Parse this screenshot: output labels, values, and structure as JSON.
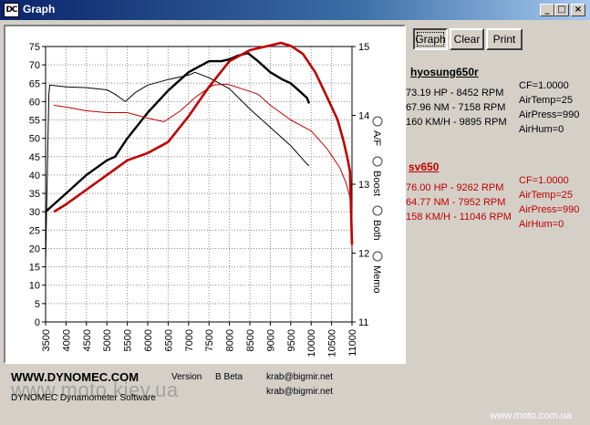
{
  "window": {
    "title": "Graph",
    "icon_text": "DC",
    "minimize": "_",
    "maximize": "□",
    "close": "×"
  },
  "buttons": {
    "graph": "Graph",
    "clear": "Clear",
    "print": "Print"
  },
  "radio_options": [
    "A/F",
    "Boost",
    "Both",
    "Memo"
  ],
  "runs": [
    {
      "name": "hyosung650r",
      "color": "#000000",
      "hp": "73.19 HP - 8452 RPM",
      "nm": "67.96 NM - 7158 RPM",
      "speed": "160 KM/H - 9895 RPM",
      "cf": "CF=1.0000",
      "temp": "AirTemp=25",
      "press": "AirPress=990",
      "hum": "AirHum=0"
    },
    {
      "name": "sv650",
      "color": "#c00000",
      "hp": "76.00 HP - 9262 RPM",
      "nm": "64.77 NM - 7952 RPM",
      "speed": "158 KM/H - 11046 RPM",
      "cf": "CF=1.0000",
      "temp": "AirTemp=25",
      "press": "AirPress=990",
      "hum": "AirHum=0"
    }
  ],
  "footer": {
    "logo": "WWW.DYNOMEC.COM",
    "subtitle": "DYNOMEC Dynamometer Software",
    "version_label": "Version",
    "version_value": "B Beta",
    "email1": "krab@bigmir.net",
    "email2": "krab@bigmir.net",
    "watermark_left": "www.moto.kiev.ua",
    "watermark_right": "www.moto.com.ua"
  },
  "chart_data": {
    "type": "line",
    "xlim": [
      3500,
      11000
    ],
    "ylim_left": [
      0,
      75
    ],
    "ylim_right": [
      11,
      15
    ],
    "x_ticks": [
      3500,
      4000,
      4500,
      5000,
      5500,
      6000,
      6500,
      7000,
      7500,
      8000,
      8500,
      9000,
      9500,
      10000,
      10500,
      11000
    ],
    "y_ticks_left": [
      0,
      5,
      10,
      15,
      20,
      25,
      30,
      35,
      40,
      45,
      50,
      55,
      60,
      65,
      70,
      75
    ],
    "y_ticks_right": [
      11,
      12,
      13,
      14,
      15
    ],
    "grid": true,
    "series": [
      {
        "name": "hyosung650r",
        "kind": "power",
        "color": "#000000",
        "points": [
          [
            3500,
            30
          ],
          [
            3700,
            32
          ],
          [
            4000,
            35
          ],
          [
            4500,
            40
          ],
          [
            5000,
            44
          ],
          [
            5200,
            45
          ],
          [
            5500,
            50
          ],
          [
            6000,
            57
          ],
          [
            6500,
            63
          ],
          [
            7000,
            68
          ],
          [
            7500,
            71
          ],
          [
            7800,
            71
          ],
          [
            8000,
            71.5
          ],
          [
            8200,
            72.5
          ],
          [
            8452,
            73.2
          ],
          [
            8700,
            71
          ],
          [
            9000,
            68
          ],
          [
            9300,
            66
          ],
          [
            9500,
            65
          ],
          [
            9700,
            63
          ],
          [
            9900,
            61
          ],
          [
            9950,
            59.5
          ]
        ]
      },
      {
        "name": "hyosung650r",
        "kind": "torque",
        "color": "#000000",
        "points": [
          [
            3500,
            16
          ],
          [
            3550,
            45
          ],
          [
            3580,
            62
          ],
          [
            3600,
            64.5
          ],
          [
            4000,
            64
          ],
          [
            4500,
            63.8
          ],
          [
            5000,
            63.2
          ],
          [
            5200,
            62
          ],
          [
            5450,
            60
          ],
          [
            5700,
            62.5
          ],
          [
            6000,
            64.5
          ],
          [
            6500,
            66
          ],
          [
            7000,
            67.2
          ],
          [
            7158,
            67.96
          ],
          [
            7500,
            66.5
          ],
          [
            8000,
            63.5
          ],
          [
            8500,
            58
          ],
          [
            9000,
            53
          ],
          [
            9500,
            48
          ],
          [
            9900,
            43
          ],
          [
            9950,
            42.5
          ]
        ]
      },
      {
        "name": "sv650",
        "kind": "power",
        "color": "#c00000",
        "points": [
          [
            3700,
            30
          ],
          [
            4000,
            32
          ],
          [
            4500,
            36
          ],
          [
            5000,
            40
          ],
          [
            5500,
            44
          ],
          [
            6000,
            46
          ],
          [
            6500,
            49
          ],
          [
            7000,
            56
          ],
          [
            7500,
            64
          ],
          [
            8000,
            71
          ],
          [
            8500,
            74
          ],
          [
            9000,
            75.3
          ],
          [
            9262,
            76
          ],
          [
            9500,
            75.2
          ],
          [
            9800,
            73
          ],
          [
            10100,
            68
          ],
          [
            10400,
            61
          ],
          [
            10650,
            55
          ],
          [
            10800,
            49
          ],
          [
            10900,
            44
          ],
          [
            10950,
            41
          ],
          [
            11000,
            21
          ]
        ]
      },
      {
        "name": "sv650",
        "kind": "torque",
        "color": "#c00000",
        "points": [
          [
            3700,
            59
          ],
          [
            4000,
            58.5
          ],
          [
            4500,
            57.5
          ],
          [
            5000,
            57
          ],
          [
            5500,
            57
          ],
          [
            6000,
            55.5
          ],
          [
            6400,
            54.5
          ],
          [
            6800,
            57.5
          ],
          [
            7200,
            61.5
          ],
          [
            7600,
            64.5
          ],
          [
            7952,
            64.77
          ],
          [
            8300,
            63.5
          ],
          [
            8700,
            62
          ],
          [
            9000,
            59
          ],
          [
            9500,
            55
          ],
          [
            10000,
            52
          ],
          [
            10400,
            47
          ],
          [
            10700,
            42
          ],
          [
            10850,
            38
          ],
          [
            10950,
            34
          ],
          [
            11000,
            20
          ]
        ]
      }
    ]
  }
}
